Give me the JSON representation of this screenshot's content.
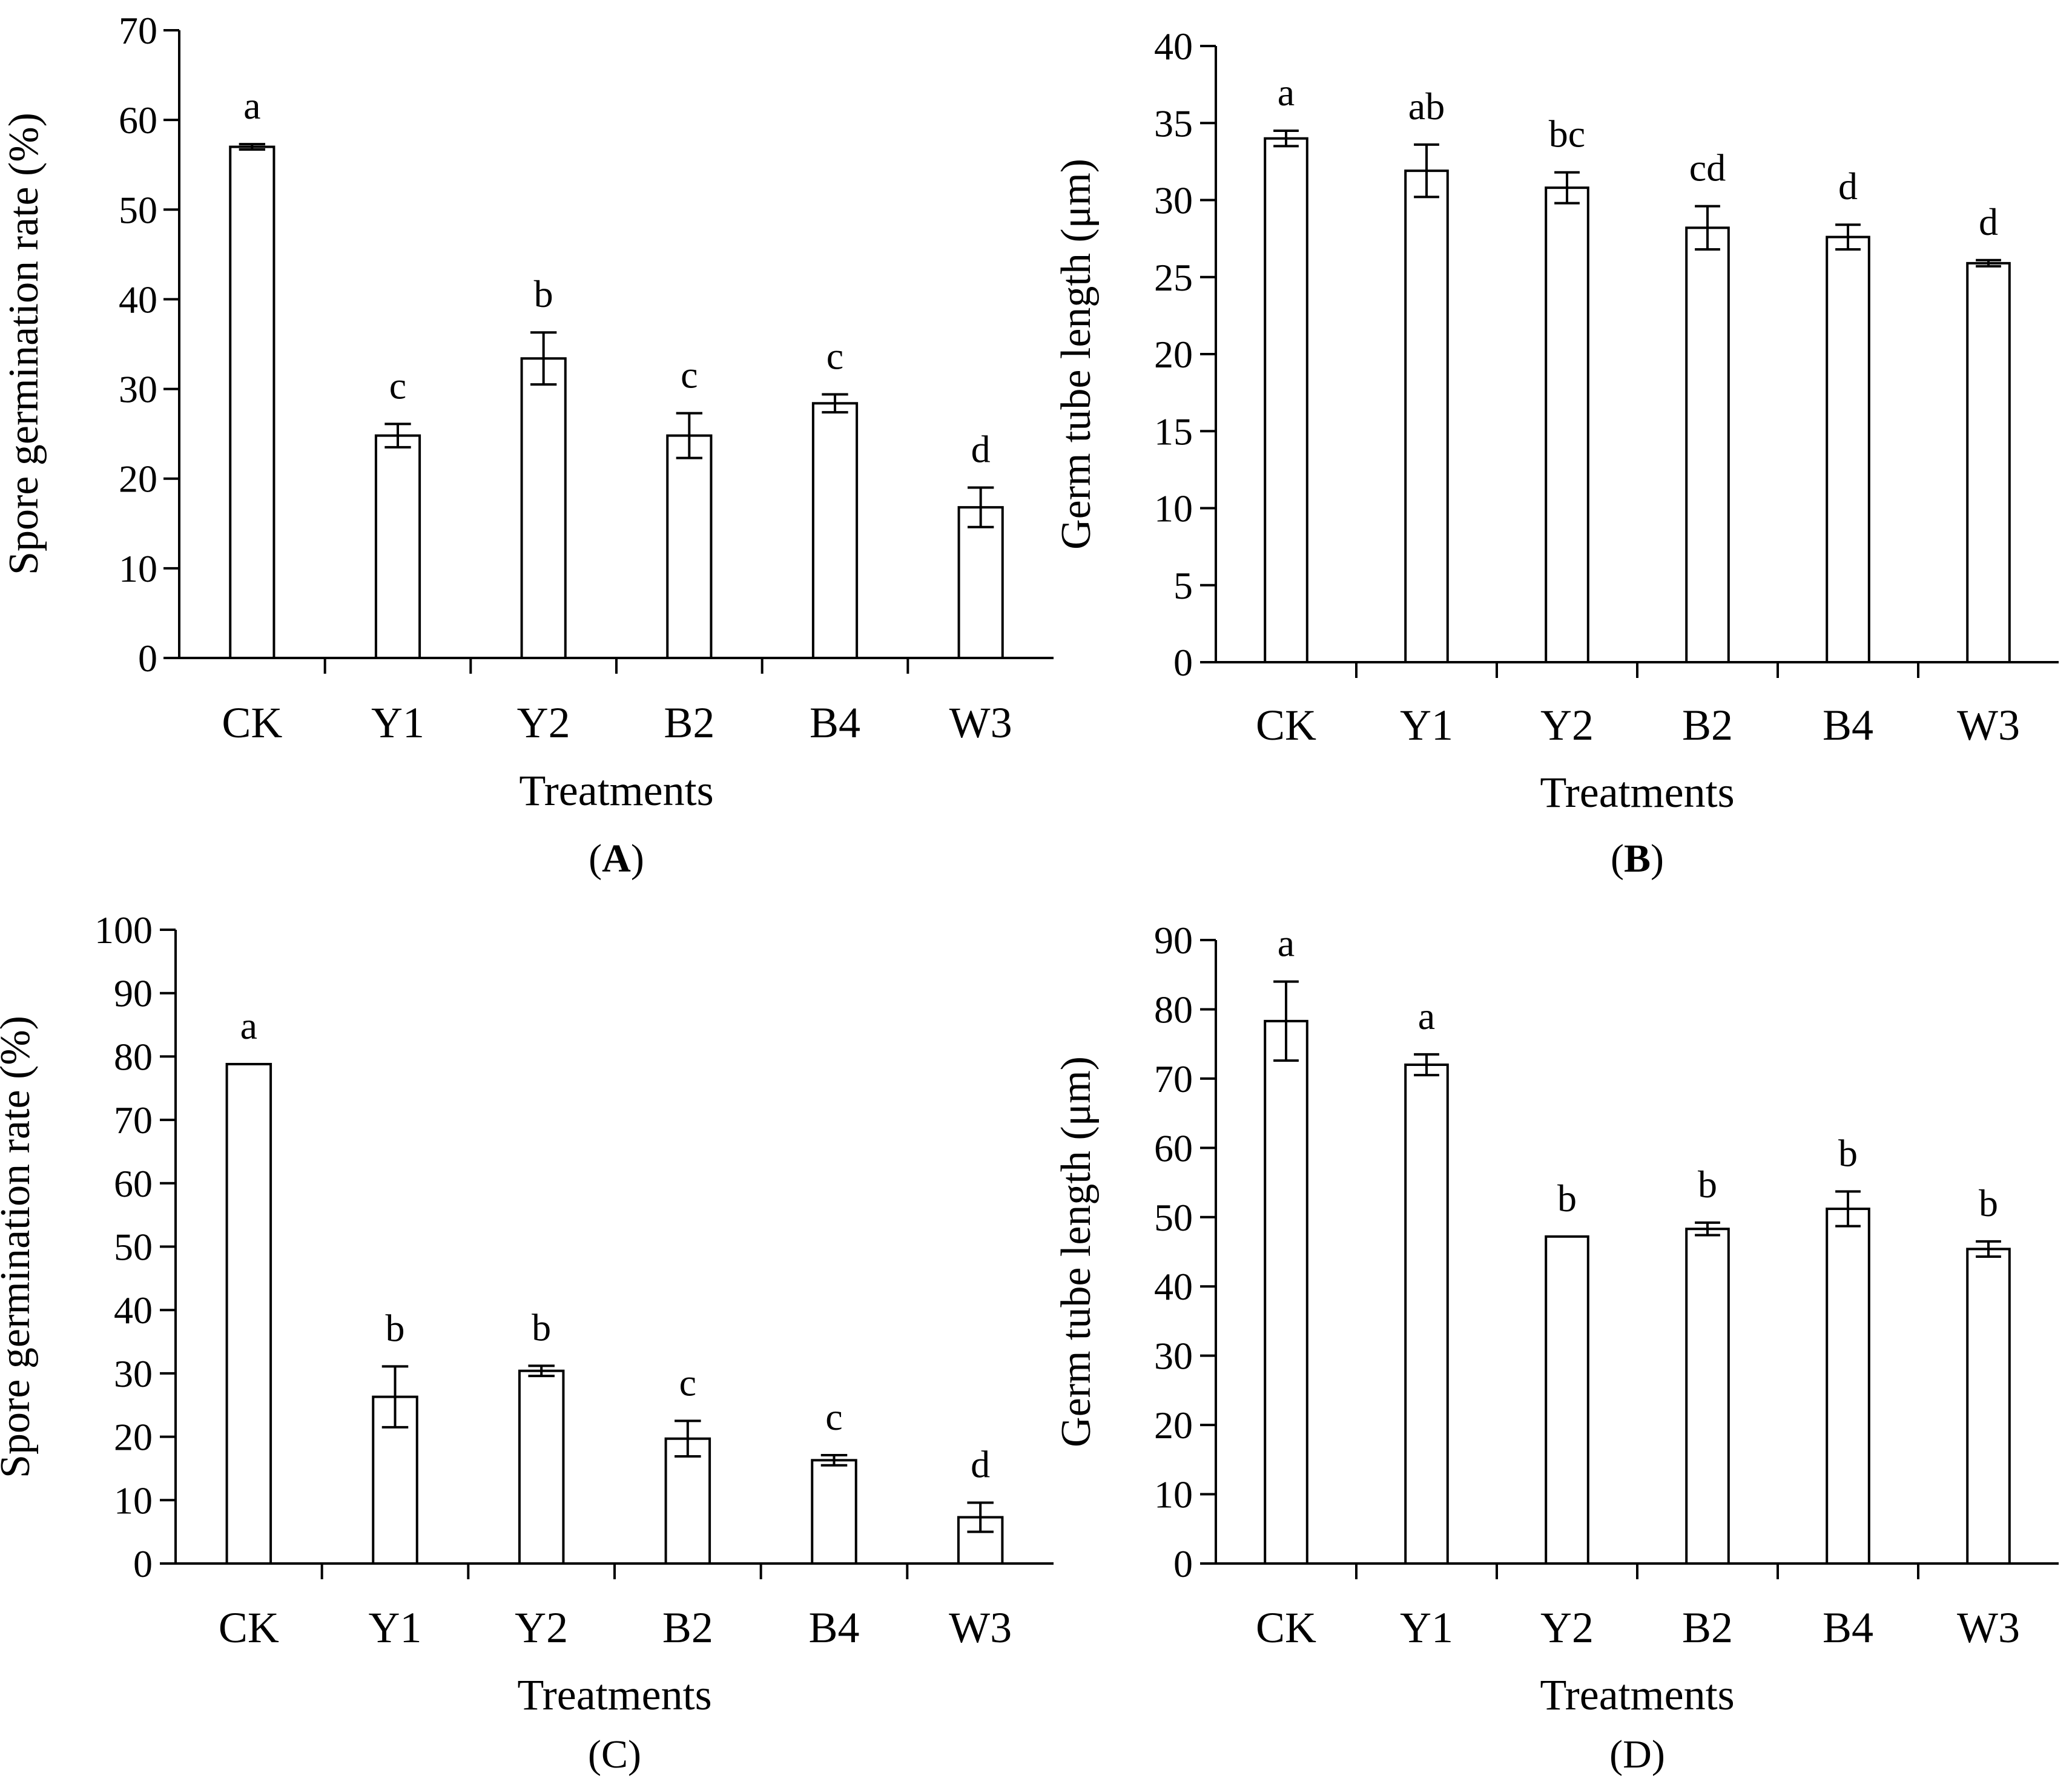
{
  "colors": {
    "bar_fill": "#ffffff",
    "stroke": "#000000",
    "background": "#ffffff"
  },
  "chart_data": [
    {
      "panel_label": "(A)",
      "panel_letter": "A",
      "type": "bar",
      "title": "",
      "xlabel": "Treatments",
      "ylabel": "Spore germination rate (%)",
      "ylim": [
        0,
        70
      ],
      "yticks": [
        0,
        10,
        20,
        30,
        40,
        50,
        60,
        70
      ],
      "categories": [
        "CK",
        "Y1",
        "Y2",
        "B2",
        "B4",
        "W3"
      ],
      "values": [
        57,
        24.8,
        33.4,
        24.8,
        28.4,
        16.8
      ],
      "errors": [
        0.3,
        1.3,
        2.9,
        2.5,
        1.0,
        2.2
      ],
      "letters": [
        "a",
        "c",
        "b",
        "c",
        "c",
        "d"
      ]
    },
    {
      "panel_label": "(B)",
      "panel_letter": "B",
      "type": "bar",
      "title": "",
      "xlabel": "Treatments",
      "ylabel": "Germ tube length (μm)",
      "ylim": [
        0,
        40
      ],
      "yticks": [
        0,
        5,
        10,
        15,
        20,
        25,
        30,
        35,
        40
      ],
      "categories": [
        "CK",
        "Y1",
        "Y2",
        "B2",
        "B4",
        "W3"
      ],
      "values": [
        34.0,
        31.9,
        30.8,
        28.2,
        27.6,
        25.9
      ],
      "errors": [
        0.5,
        1.7,
        1.0,
        1.4,
        0.8,
        0.2
      ],
      "letters": [
        "a",
        "ab",
        "bc",
        "cd",
        "d",
        "d"
      ]
    },
    {
      "panel_label": "(C)",
      "panel_letter": "C",
      "type": "bar",
      "title": "",
      "xlabel": "Treatments",
      "ylabel": "Spore germination rate (%)",
      "ylim": [
        0,
        100
      ],
      "yticks": [
        0,
        10,
        20,
        30,
        40,
        50,
        60,
        70,
        80,
        90,
        100
      ],
      "categories": [
        "CK",
        "Y1",
        "Y2",
        "B2",
        "B4",
        "W3"
      ],
      "values": [
        78.8,
        26.3,
        30.4,
        19.7,
        16.3,
        7.3
      ],
      "errors": [
        0,
        4.8,
        0.8,
        2.8,
        0.8,
        2.3
      ],
      "letters": [
        "a",
        "b",
        "b",
        "c",
        "c",
        "d"
      ]
    },
    {
      "panel_label": "(D)",
      "panel_letter": "D",
      "type": "bar",
      "title": "",
      "xlabel": "Treatments",
      "ylabel": "Germ tube length (μm)",
      "ylim": [
        0,
        90
      ],
      "yticks": [
        0,
        10,
        20,
        30,
        40,
        50,
        60,
        70,
        80,
        90
      ],
      "categories": [
        "CK",
        "Y1",
        "Y2",
        "B2",
        "B4",
        "W3"
      ],
      "values": [
        78.3,
        72.0,
        47.2,
        48.3,
        51.2,
        45.4
      ],
      "errors": [
        5.7,
        1.5,
        0,
        0.9,
        2.5,
        1.1
      ],
      "letters": [
        "a",
        "a",
        "b",
        "b",
        "b",
        "b"
      ]
    }
  ]
}
